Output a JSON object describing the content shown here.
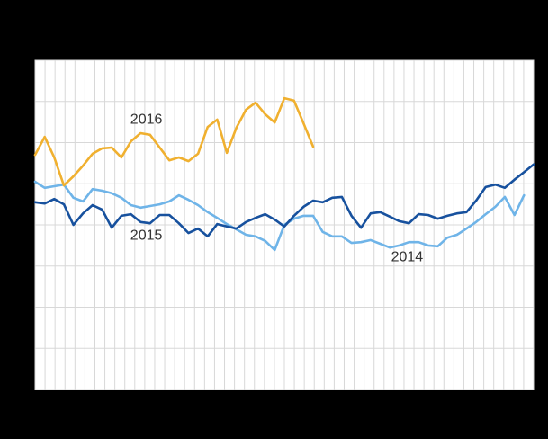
{
  "figure": {
    "background_color": "#000000",
    "plot_background_color": "#FFFFFF",
    "gridline_color": "#D8D8D8",
    "label_color": "#333333"
  },
  "chart_data": {
    "type": "line",
    "title": "",
    "xlabel": "",
    "ylabel": "",
    "x_unit": "week",
    "x_range": [
      1,
      53
    ],
    "ylim": [
      0,
      8
    ],
    "axis_tick_labels_visible": false,
    "grid": {
      "vertical_divisions": 50,
      "horizontal_divisions": 8,
      "grid_on": true
    },
    "legend_position": "inline-annotations",
    "series": [
      {
        "name": "2014",
        "color": "#6FB4E8",
        "start_x": 1,
        "values": [
          5.05,
          4.9,
          4.94,
          4.98,
          4.66,
          4.57,
          4.87,
          4.83,
          4.77,
          4.66,
          4.48,
          4.42,
          4.46,
          4.5,
          4.57,
          4.72,
          4.61,
          4.48,
          4.31,
          4.17,
          4.02,
          3.89,
          3.76,
          3.72,
          3.61,
          3.39,
          4.0,
          4.15,
          4.22,
          4.22,
          3.83,
          3.72,
          3.72,
          3.56,
          3.58,
          3.63,
          3.54,
          3.45,
          3.5,
          3.58,
          3.58,
          3.5,
          3.48,
          3.69,
          3.76,
          3.91,
          4.07,
          4.26,
          4.44,
          4.68,
          4.24,
          4.72
        ]
      },
      {
        "name": "2015",
        "color": "#17519E",
        "start_x": 1,
        "values": [
          4.55,
          4.52,
          4.63,
          4.5,
          4.0,
          4.28,
          4.48,
          4.37,
          3.93,
          4.22,
          4.26,
          4.07,
          4.04,
          4.24,
          4.24,
          4.04,
          3.8,
          3.91,
          3.72,
          4.02,
          3.96,
          3.91,
          4.07,
          4.17,
          4.26,
          4.13,
          3.96,
          4.22,
          4.44,
          4.59,
          4.55,
          4.66,
          4.68,
          4.22,
          3.93,
          4.28,
          4.31,
          4.2,
          4.09,
          4.04,
          4.26,
          4.24,
          4.15,
          4.22,
          4.28,
          4.31,
          4.59,
          4.92,
          4.98,
          4.9,
          5.1,
          5.28,
          5.47
        ]
      },
      {
        "name": "2016",
        "color": "#F0B02F",
        "start_x": 1,
        "values": [
          5.7,
          6.14,
          5.64,
          4.96,
          5.18,
          5.44,
          5.73,
          5.86,
          5.88,
          5.64,
          6.03,
          6.23,
          6.19,
          5.88,
          5.57,
          5.64,
          5.55,
          5.73,
          6.38,
          6.56,
          5.75,
          6.36,
          6.8,
          6.97,
          6.69,
          6.49,
          7.08,
          7.02,
          6.47,
          5.9
        ]
      }
    ],
    "annotations": [
      {
        "text": "2016",
        "x": 12.6,
        "y": 6.58
      },
      {
        "text": "2015",
        "x": 12.6,
        "y": 3.76
      },
      {
        "text": "2014",
        "x": 39.8,
        "y": 3.23
      }
    ]
  }
}
